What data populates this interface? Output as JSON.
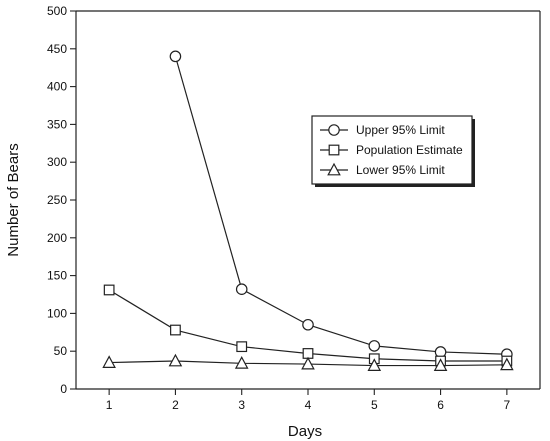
{
  "chart_data": {
    "type": "line",
    "xlabel": "Days",
    "ylabel": "Number of Bears",
    "xlim": [
      0.5,
      7.5
    ],
    "ylim": [
      0,
      500
    ],
    "x_ticks": [
      1,
      2,
      3,
      4,
      5,
      6,
      7
    ],
    "y_ticks": [
      0,
      50,
      100,
      150,
      200,
      250,
      300,
      350,
      400,
      450,
      500
    ],
    "grid": false,
    "legend_position": "top-right",
    "series": [
      {
        "name": "Upper 95% Limit",
        "marker": "circle",
        "x": [
          2,
          3,
          4,
          5,
          6,
          7
        ],
        "values": [
          440,
          132,
          85,
          57,
          49,
          46
        ]
      },
      {
        "name": "Population Estimate",
        "marker": "square",
        "x": [
          1,
          2,
          3,
          4,
          5,
          6,
          7
        ],
        "values": [
          131,
          78,
          56,
          47,
          40,
          37,
          37
        ]
      },
      {
        "name": "Lower 95% Limit",
        "marker": "triangle",
        "x": [
          1,
          2,
          3,
          4,
          5,
          6,
          7
        ],
        "values": [
          35,
          37,
          34,
          33,
          31,
          31,
          32
        ]
      }
    ],
    "colors": {
      "line": "#222222",
      "marker_fill": "#ffffff",
      "text": "#111111"
    }
  }
}
